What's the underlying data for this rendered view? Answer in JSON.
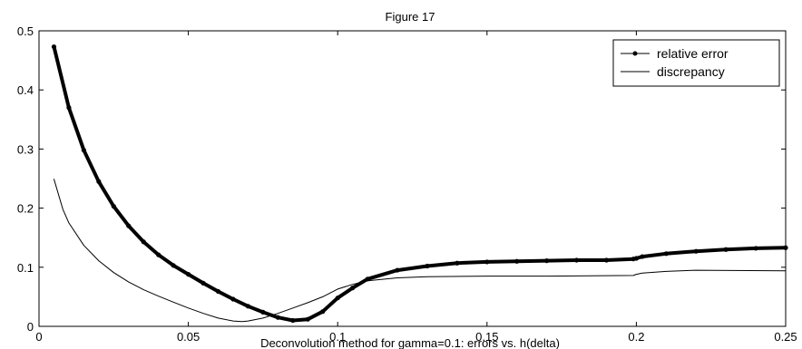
{
  "chart_data": {
    "type": "line",
    "title": "Figure 17",
    "xlabel": "Deconvolution method for gamma=0.1: errors vs. h(delta)",
    "ylabel": "",
    "xlim": [
      0,
      0.25
    ],
    "ylim": [
      0,
      0.5
    ],
    "xticks": [
      0,
      0.05,
      0.1,
      0.15,
      0.2,
      0.25
    ],
    "xtick_labels": [
      "0",
      "0.05",
      "0.1",
      "0.15",
      "0.2",
      "0.25"
    ],
    "yticks": [
      0,
      0.1,
      0.2,
      0.3,
      0.4,
      0.5
    ],
    "ytick_labels": [
      "0",
      "0.1",
      "0.2",
      "0.3",
      "0.4",
      "0.5"
    ],
    "grid": false,
    "legend_position": "top-right",
    "series": [
      {
        "name": "relative error",
        "color": "#000000",
        "marker": "dot",
        "x": [
          0.005,
          0.01,
          0.015,
          0.02,
          0.025,
          0.03,
          0.035,
          0.04,
          0.045,
          0.05,
          0.055,
          0.06,
          0.065,
          0.07,
          0.075,
          0.08,
          0.085,
          0.09,
          0.095,
          0.1,
          0.105,
          0.11,
          0.12,
          0.13,
          0.14,
          0.15,
          0.16,
          0.17,
          0.18,
          0.19,
          0.199,
          0.2,
          0.202,
          0.21,
          0.22,
          0.23,
          0.24,
          0.25
        ],
        "y": [
          0.473,
          0.37,
          0.298,
          0.245,
          0.203,
          0.17,
          0.143,
          0.121,
          0.103,
          0.088,
          0.073,
          0.059,
          0.046,
          0.034,
          0.024,
          0.015,
          0.01,
          0.012,
          0.025,
          0.048,
          0.065,
          0.08,
          0.095,
          0.102,
          0.107,
          0.109,
          0.11,
          0.111,
          0.112,
          0.112,
          0.114,
          0.115,
          0.118,
          0.123,
          0.127,
          0.13,
          0.132,
          0.133
        ]
      },
      {
        "name": "discrepancy",
        "color": "#000000",
        "marker": "none",
        "x": [
          0.005,
          0.008,
          0.01,
          0.015,
          0.02,
          0.025,
          0.03,
          0.035,
          0.04,
          0.045,
          0.05,
          0.055,
          0.06,
          0.065,
          0.068,
          0.07,
          0.075,
          0.08,
          0.085,
          0.09,
          0.095,
          0.1,
          0.105,
          0.11,
          0.12,
          0.13,
          0.15,
          0.17,
          0.199,
          0.2,
          0.202,
          0.21,
          0.22,
          0.25
        ],
        "y": [
          0.249,
          0.198,
          0.175,
          0.137,
          0.111,
          0.091,
          0.075,
          0.062,
          0.051,
          0.041,
          0.031,
          0.022,
          0.014,
          0.009,
          0.008,
          0.009,
          0.014,
          0.022,
          0.031,
          0.04,
          0.05,
          0.063,
          0.071,
          0.077,
          0.082,
          0.084,
          0.085,
          0.085,
          0.086,
          0.088,
          0.09,
          0.093,
          0.095,
          0.094
        ]
      }
    ]
  }
}
